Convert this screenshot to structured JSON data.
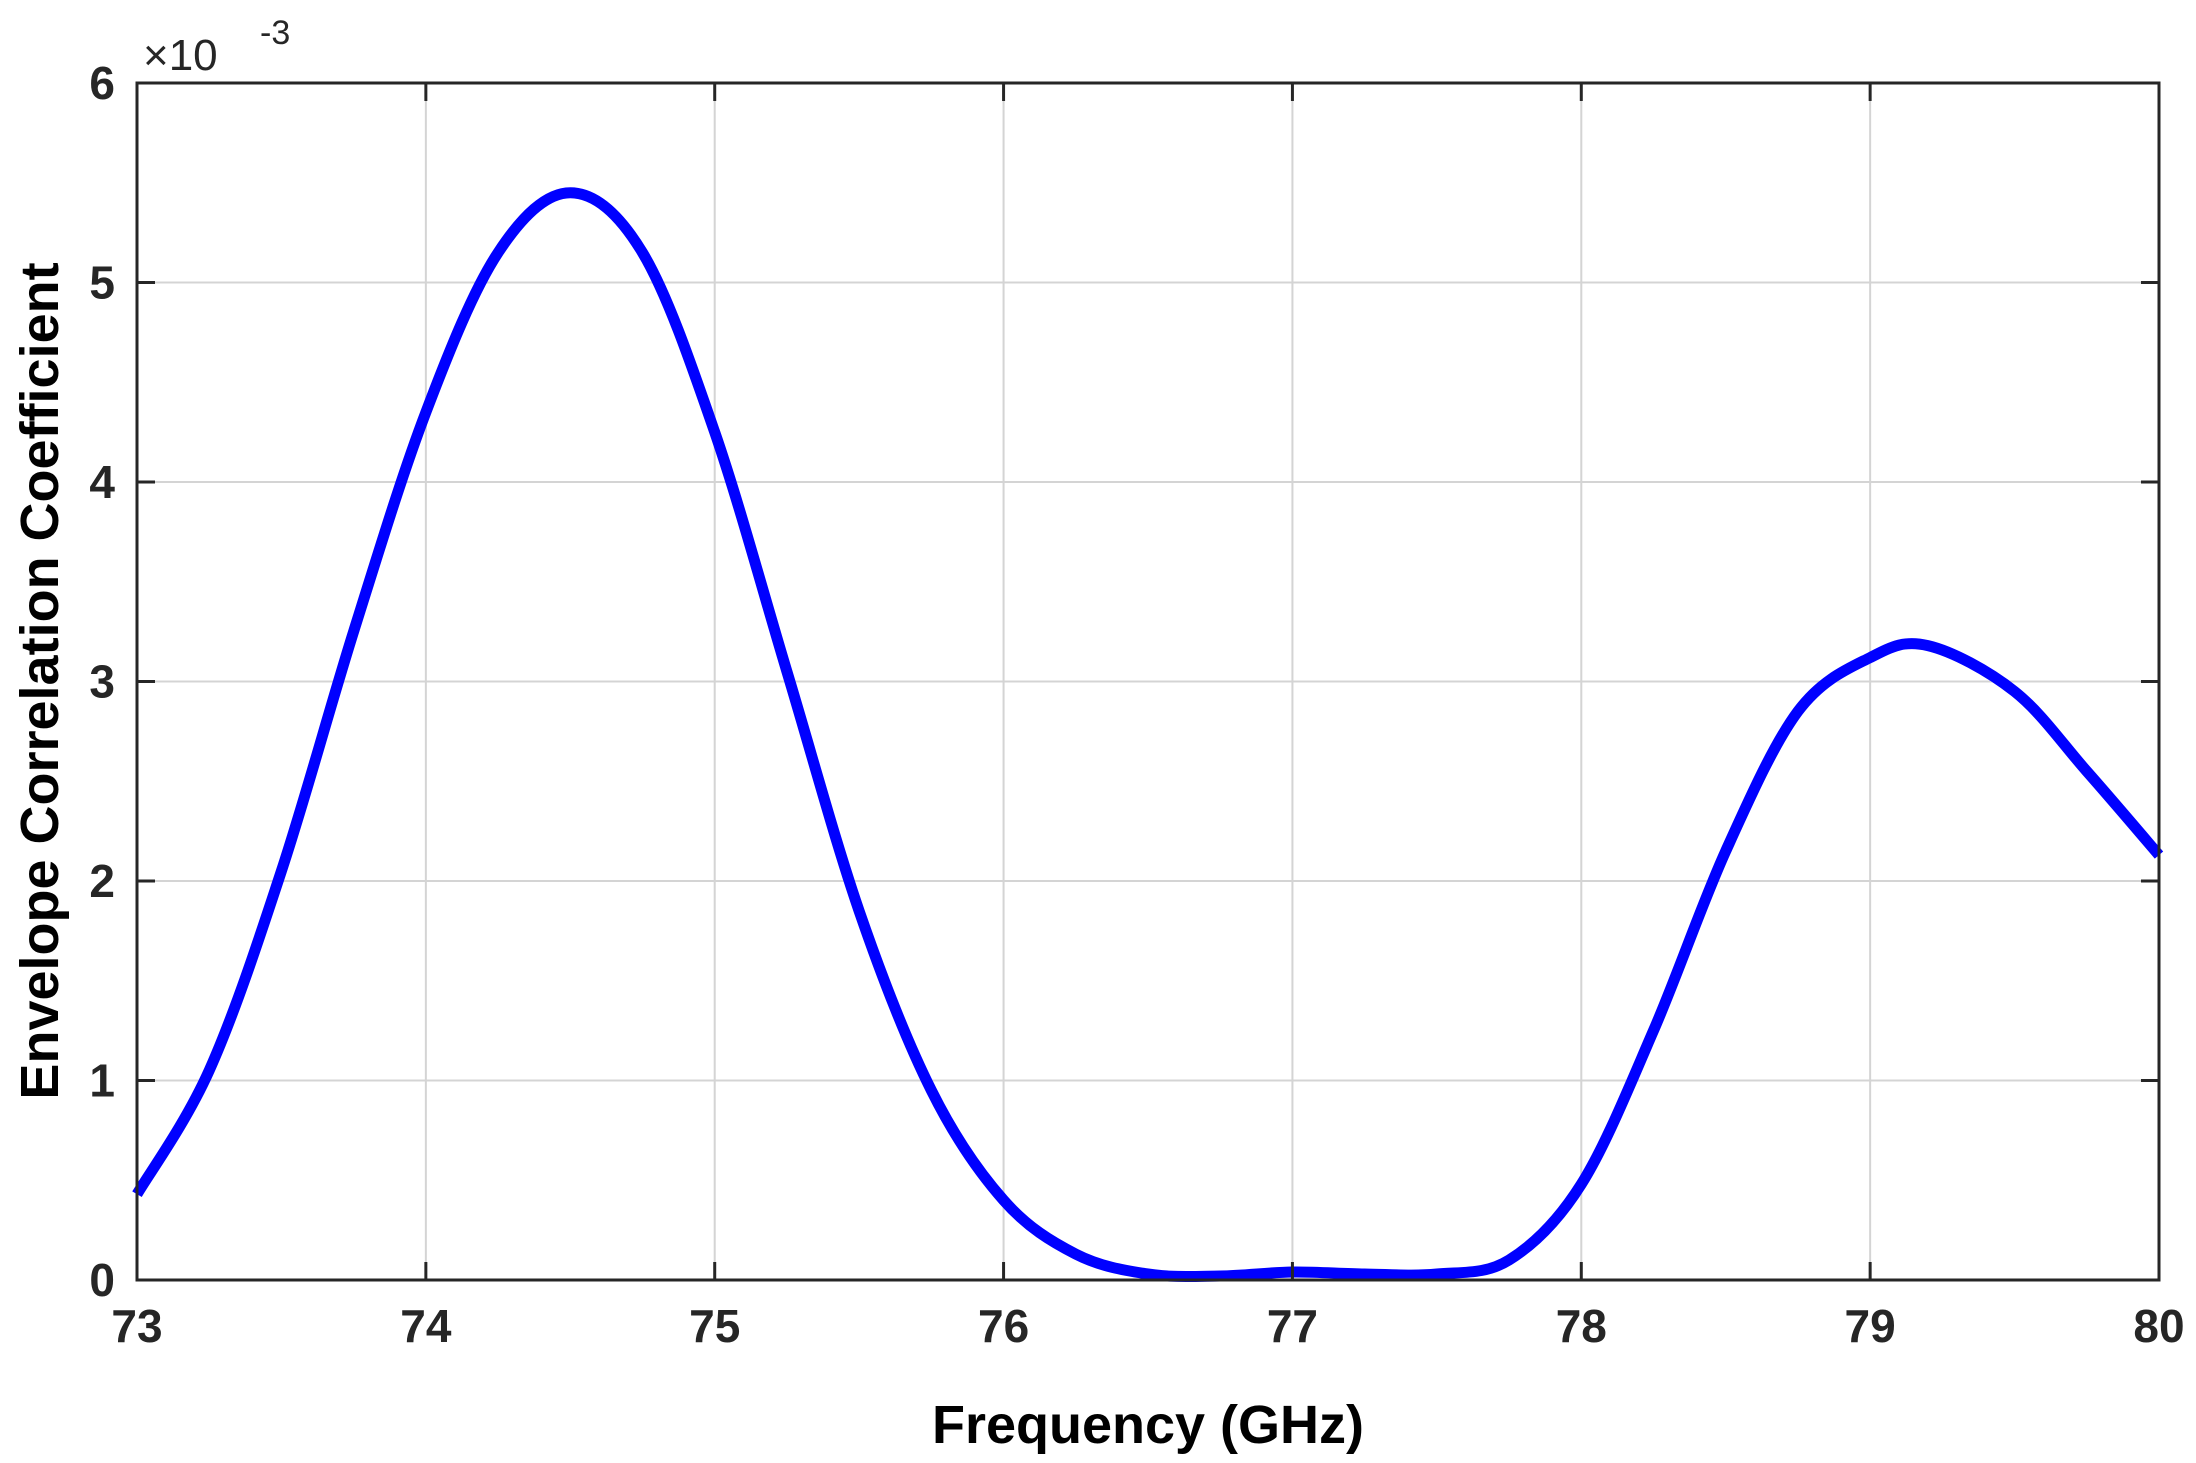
{
  "chart_data": {
    "type": "line",
    "xlabel": "Frequency (GHz)",
    "ylabel": "Envelope Correlation Coefficient",
    "xlim": [
      73,
      80
    ],
    "ylim": [
      0,
      6
    ],
    "x_ticks": [
      "73",
      "74",
      "75",
      "76",
      "77",
      "78",
      "79",
      "80"
    ],
    "y_ticks": [
      "0",
      "1",
      "2",
      "3",
      "4",
      "5",
      "6"
    ],
    "y_exponent": {
      "base": "×10",
      "power": "-3"
    },
    "grid": true,
    "series": [
      {
        "color": "#0000ff",
        "x": [
          73.0,
          73.25,
          73.5,
          73.75,
          74.0,
          74.25,
          74.5,
          74.75,
          75.0,
          75.25,
          75.5,
          75.75,
          76.0,
          76.25,
          76.5,
          76.75,
          77.0,
          77.25,
          77.5,
          77.75,
          78.0,
          78.25,
          78.5,
          78.75,
          79.0,
          79.2,
          79.5,
          79.75,
          80.0
        ],
        "y": [
          0.43,
          1.05,
          2.05,
          3.25,
          4.35,
          5.15,
          5.45,
          5.15,
          4.25,
          3.05,
          1.85,
          0.95,
          0.4,
          0.13,
          0.03,
          0.02,
          0.04,
          0.03,
          0.03,
          0.1,
          0.48,
          1.25,
          2.15,
          2.85,
          3.12,
          3.18,
          2.95,
          2.55,
          2.13
        ]
      }
    ]
  }
}
